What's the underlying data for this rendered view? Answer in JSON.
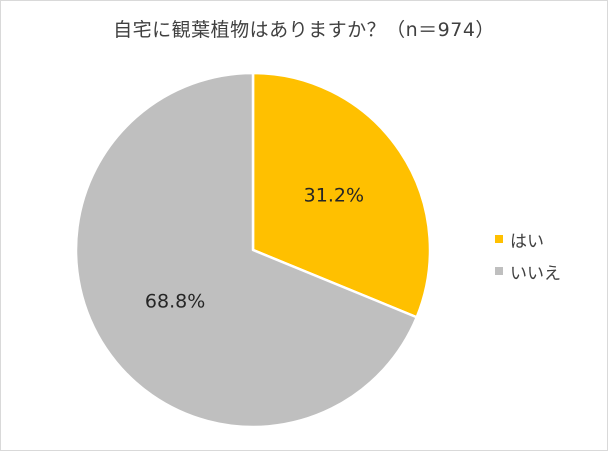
{
  "chart_data": {
    "type": "pie",
    "title": "自宅に観葉植物はありますか？（n＝974）",
    "categories": [
      "はい",
      "いいえ"
    ],
    "values": [
      31.2,
      68.8
    ],
    "value_labels": [
      "31.2%",
      "68.8%"
    ],
    "colors": [
      "#FFC000",
      "#BFBFBF"
    ],
    "legend_position": "right",
    "start_angle": "12 o'clock, clockwise"
  }
}
